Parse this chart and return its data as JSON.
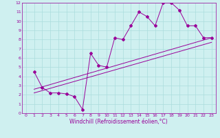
{
  "bg_color": "#cff0f0",
  "grid_color": "#aadddd",
  "line_color": "#990099",
  "xlabel": "Windchill (Refroidissement éolien,°C)",
  "xlim": [
    -0.5,
    23.5
  ],
  "ylim": [
    0,
    12
  ],
  "xticks": [
    0,
    1,
    2,
    3,
    4,
    5,
    6,
    7,
    8,
    9,
    10,
    11,
    12,
    13,
    14,
    15,
    16,
    17,
    18,
    19,
    20,
    21,
    22,
    23
  ],
  "yticks": [
    0,
    1,
    2,
    3,
    4,
    5,
    6,
    7,
    8,
    9,
    10,
    11,
    12
  ],
  "scatter_x": [
    1,
    2,
    3,
    4,
    5,
    6,
    7,
    8,
    9,
    10,
    11,
    12,
    13,
    14,
    15,
    16,
    17,
    18,
    19,
    20,
    21,
    22,
    23
  ],
  "scatter_y": [
    4.5,
    2.8,
    2.2,
    2.2,
    2.1,
    1.8,
    0.4,
    6.5,
    5.2,
    5.0,
    8.2,
    8.0,
    9.5,
    11.0,
    10.5,
    9.5,
    12.0,
    12.0,
    11.2,
    9.5,
    9.5,
    8.2,
    8.2
  ],
  "line1_x": [
    1,
    23
  ],
  "line1_y": [
    2.6,
    8.2
  ],
  "line2_x": [
    1,
    23
  ],
  "line2_y": [
    2.2,
    7.7
  ],
  "font_size_label": 5.5,
  "font_size_tick": 4.5,
  "marker": "D",
  "marker_size": 2.0,
  "line_width": 0.7
}
